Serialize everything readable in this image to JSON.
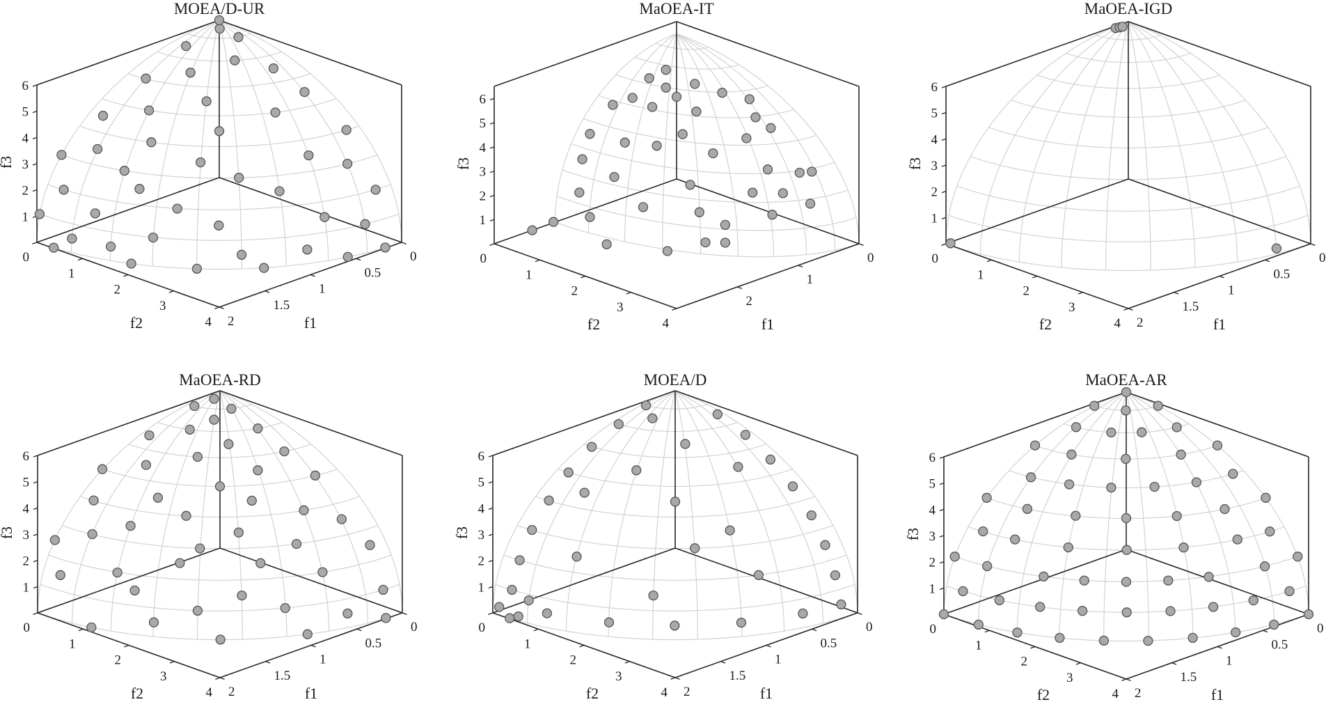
{
  "figure": {
    "marker_fill": "#a9a9a9",
    "marker_edge": "#555555",
    "grid_color": "#d2d2d2",
    "axis_color": "#262626"
  },
  "chart_data": [
    {
      "type": "scatter",
      "title": "MOEA/D-UR",
      "xlabel": "f1",
      "ylabel": "f2",
      "zlabel": "f3",
      "f1_lim": [
        0,
        2
      ],
      "f2_lim": [
        0,
        4
      ],
      "f3_lim": [
        0,
        6
      ],
      "f1_ticks": [
        "0",
        "0.5",
        "1",
        "1.5",
        "2"
      ],
      "f2_ticks": [
        "0",
        "1",
        "2",
        "3",
        "4"
      ],
      "f3_ticks": [
        "1",
        "2",
        "3",
        "4",
        "5",
        "6"
      ],
      "surface_axes": [
        2,
        4,
        6
      ],
      "grid": true,
      "points": [
        [
          1.99,
          0.35,
          0
        ],
        [
          1.81,
          1.69,
          0
        ],
        [
          1.53,
          2.57,
          0
        ],
        [
          1.15,
          3.28,
          0
        ],
        [
          0.52,
          3.86,
          0
        ],
        [
          0.17,
          3.98,
          0
        ],
        [
          1.96,
          0.69,
          0.52
        ],
        [
          1.87,
          1.36,
          0.52
        ],
        [
          1.28,
          3.05,
          0.52
        ],
        [
          0.84,
          3.61,
          0.52
        ],
        [
          1.97,
          0,
          1.04
        ],
        [
          1.71,
          1.97,
          1.04
        ],
        [
          0.34,
          3.88,
          1.04
        ],
        [
          1.86,
          1.0,
          1.55
        ],
        [
          1.37,
          2.73,
          1.55
        ],
        [
          0.66,
          3.63,
          1.55
        ],
        [
          1.87,
          0.33,
          2.05
        ],
        [
          1.54,
          2.16,
          2.05
        ],
        [
          0.16,
          3.75,
          2.05
        ],
        [
          1.64,
          1.53,
          2.54
        ],
        [
          0.91,
          3.14,
          2.54
        ],
        [
          1.73,
          0,
          3.0
        ],
        [
          1.63,
          1.18,
          3.0
        ],
        [
          1.11,
          2.65,
          3.0
        ],
        [
          0.3,
          3.41,
          3.0
        ],
        [
          1.62,
          0.57,
          3.44
        ],
        [
          1.26,
          2.11,
          3.44
        ],
        [
          0.56,
          3.08,
          3.44
        ],
        [
          1.39,
          1.29,
          3.86
        ],
        [
          0.13,
          3.05,
          3.86
        ],
        [
          1.4,
          0.25,
          4.24
        ],
        [
          1.0,
          2.0,
          4.24
        ],
        [
          1.21,
          0.88,
          4.6
        ],
        [
          0.55,
          2.33,
          4.6
        ],
        [
          0.88,
          1.48,
          4.91
        ],
        [
          0.2,
          2.27,
          4.91
        ],
        [
          0.98,
          0.35,
          5.2
        ],
        [
          0.74,
          0.85,
          5.44
        ],
        [
          0.22,
          1.63,
          5.44
        ],
        [
          0.39,
          1.12,
          5.64
        ],
        [
          0.5,
          0.27,
          5.8
        ],
        [
          0.12,
          0.66,
          5.91
        ],
        [
          0.12,
          0.25,
          5.98
        ],
        [
          0,
          0,
          6
        ]
      ]
    },
    {
      "type": "scatter",
      "title": "MaOEA-IT",
      "xlabel": "f1",
      "ylabel": "f2",
      "zlabel": "f3",
      "f1_lim": [
        0,
        3
      ],
      "f2_lim": [
        0,
        4
      ],
      "f3_lim": [
        0,
        6.5
      ],
      "f1_ticks": [
        "0",
        "1",
        "2"
      ],
      "f2_ticks": [
        "0",
        "1",
        "2",
        "3",
        "4"
      ],
      "f3_ticks": [
        "1",
        "2",
        "3",
        "4",
        "5",
        "6"
      ],
      "surface_axes": [
        2,
        4,
        6
      ],
      "grid": true,
      "points": [
        [
          1.2,
          1.0,
          5.9
        ],
        [
          0.9,
          1.6,
          5.8
        ],
        [
          1.0,
          1.1,
          5.4
        ],
        [
          1.4,
          0.9,
          5.2
        ],
        [
          0.6,
          1.8,
          5.3
        ],
        [
          1.5,
          0.6,
          4.8
        ],
        [
          0.8,
          1.5,
          4.5
        ],
        [
          0.5,
          2.4,
          4.6
        ],
        [
          0.4,
          2.6,
          4.2
        ],
        [
          1.1,
          1.6,
          3.9
        ],
        [
          1.6,
          1.0,
          3.6
        ],
        [
          1.3,
          1.3,
          3.4
        ],
        [
          0.9,
          2.0,
          3.2
        ],
        [
          0.5,
          2.2,
          3.6
        ],
        [
          0.6,
          2.8,
          2.8
        ],
        [
          0.3,
          3.1,
          2.6
        ],
        [
          1.8,
          0.5,
          3.8
        ],
        [
          2.0,
          0.6,
          3.0
        ],
        [
          1.7,
          0.9,
          2.2
        ],
        [
          1.2,
          1.9,
          2.1
        ],
        [
          0.7,
          2.6,
          1.8
        ],
        [
          0.8,
          3.4,
          2.4
        ],
        [
          0.4,
          3.5,
          3.0
        ],
        [
          1.9,
          0.4,
          1.4
        ],
        [
          2.1,
          0.9,
          0.9
        ],
        [
          1.6,
          1.4,
          1.2
        ],
        [
          1.2,
          2.1,
          1.1
        ],
        [
          1.0,
          2.4,
          0.6
        ],
        [
          0.6,
          2.9,
          1.0
        ],
        [
          1.4,
          2.5,
          0.3
        ],
        [
          2.2,
          1.4,
          0.2
        ],
        [
          1.8,
          2.2,
          0.1
        ],
        [
          0.2,
          3.2,
          1.3
        ],
        [
          0.9,
          1.2,
          5.0
        ],
        [
          1.0,
          0.8,
          4.4
        ],
        [
          0.3,
          2.0,
          4.9
        ],
        [
          0.7,
          0.7,
          5.6
        ],
        [
          1.3,
          2.8,
          0.4
        ],
        [
          2.4,
          0.5,
          0.7
        ],
        [
          2.6,
          0.3,
          0.4
        ]
      ]
    },
    {
      "type": "scatter",
      "title": "MaOEA-IGD",
      "xlabel": "f1",
      "ylabel": "f2",
      "zlabel": "f3",
      "f1_lim": [
        0,
        2
      ],
      "f2_lim": [
        0,
        4
      ],
      "f3_lim": [
        0,
        6
      ],
      "f1_ticks": [
        "0",
        "0.5",
        "1",
        "1.5",
        "2"
      ],
      "f2_ticks": [
        "0",
        "1",
        "2",
        "3",
        "4"
      ],
      "f3_ticks": [
        "1",
        "2",
        "3",
        "4",
        "5",
        "6"
      ],
      "surface_axes": [
        2,
        4,
        6
      ],
      "grid": true,
      "points": [
        [
          0.15,
          0.02,
          5.95
        ],
        [
          0.12,
          0.05,
          5.96
        ],
        [
          0.1,
          0.07,
          5.97
        ],
        [
          1.98,
          0.06,
          0.03
        ],
        [
          0.3,
          3.85,
          0.1
        ]
      ]
    },
    {
      "type": "scatter",
      "title": "MaOEA-RD",
      "xlabel": "f1",
      "ylabel": "f2",
      "zlabel": "f3",
      "f1_lim": [
        0,
        2
      ],
      "f2_lim": [
        0,
        4
      ],
      "f3_lim": [
        0,
        6
      ],
      "f1_ticks": [
        "0",
        "0.5",
        "1",
        "1.5",
        "2"
      ],
      "f2_ticks": [
        "0",
        "1",
        "2",
        "3",
        "4"
      ],
      "f3_ticks": [
        "1",
        "2",
        "3",
        "4",
        "5",
        "6"
      ],
      "surface_axes": [
        2,
        4,
        6
      ],
      "grid": true,
      "points": [
        [
          1.93,
          1.04,
          0
        ],
        [
          1.41,
          2.83,
          0
        ],
        [
          0.85,
          3.62,
          0
        ],
        [
          0.17,
          3.98,
          0
        ],
        [
          1.72,
          1.99,
          0.52
        ],
        [
          0.52,
          3.84,
          0.52
        ],
        [
          1.51,
          2.53,
          1.04
        ],
        [
          0.99,
          3.41,
          1.04
        ],
        [
          0.17,
          3.92,
          1.04
        ],
        [
          1.92,
          0.34,
          1.55
        ],
        [
          1.75,
          1.63,
          1.55
        ],
        [
          1.24,
          2.96,
          1.55
        ],
        [
          0.64,
          3.53,
          2.05
        ],
        [
          1.77,
          1.29,
          2.05
        ],
        [
          1.81,
          0,
          2.54
        ],
        [
          1.48,
          2.08,
          2.54
        ],
        [
          1.04,
          2.97,
          2.54
        ],
        [
          0.16,
          3.61,
          2.54
        ],
        [
          1.7,
          0.6,
          3.0
        ],
        [
          1.33,
          2.22,
          3.0
        ],
        [
          0.73,
          3.14,
          3.0
        ],
        [
          1.54,
          1.12,
          3.44
        ],
        [
          1.05,
          2.51,
          3.44
        ],
        [
          0.28,
          3.23,
          3.44
        ],
        [
          1.52,
          0.27,
          3.86
        ],
        [
          1.25,
          1.76,
          3.86
        ],
        [
          0.52,
          2.88,
          3.86
        ],
        [
          1.28,
          1.2,
          4.24
        ],
        [
          0.81,
          2.32,
          4.24
        ],
        [
          1.29,
          0,
          4.6
        ],
        [
          0.91,
          1.82,
          4.6
        ],
        [
          0.22,
          2.53,
          4.6
        ],
        [
          1.11,
          0.6,
          4.91
        ],
        [
          0.58,
          1.99,
          4.91
        ],
        [
          0.82,
          1.15,
          5.2
        ],
        [
          0.26,
          1.93,
          5.2
        ],
        [
          0.85,
          0.15,
          5.44
        ],
        [
          0.55,
          1.29,
          5.44
        ],
        [
          0.62,
          0.58,
          5.64
        ],
        [
          0.23,
          1.29,
          5.64
        ],
        [
          0.4,
          0.67,
          5.8
        ],
        [
          0.34,
          0.12,
          5.91
        ],
        [
          0.18,
          0.61,
          5.91
        ],
        [
          0.15,
          0.17,
          5.98
        ]
      ]
    },
    {
      "type": "scatter",
      "title": "MOEA/D",
      "xlabel": "f1",
      "ylabel": "f2",
      "zlabel": "f3",
      "f1_lim": [
        0,
        2
      ],
      "f2_lim": [
        0,
        4
      ],
      "f3_lim": [
        0,
        6
      ],
      "f1_ticks": [
        "0",
        "0.5",
        "1",
        "1.5",
        "2"
      ],
      "f2_ticks": [
        "0",
        "1",
        "2",
        "3",
        "4"
      ],
      "f3_ticks": [
        "1",
        "2",
        "3",
        "4",
        "5",
        "6"
      ],
      "surface_axes": [
        2,
        4,
        6
      ],
      "grid": true,
      "points": [
        [
          1.99,
          0.35,
          0
        ],
        [
          1.96,
          0.34,
          1.04
        ],
        [
          1.87,
          0.33,
          2.05
        ],
        [
          1.72,
          0.3,
          3.0
        ],
        [
          1.52,
          0.27,
          3.86
        ],
        [
          1.28,
          0.22,
          4.6
        ],
        [
          1.0,
          0.17,
          5.2
        ],
        [
          0.68,
          0.12,
          5.64
        ],
        [
          0.35,
          0.06,
          5.91
        ],
        [
          0.17,
          3.98,
          0.52
        ],
        [
          0.17,
          3.85,
          1.55
        ],
        [
          0.16,
          3.61,
          2.54
        ],
        [
          0.14,
          3.27,
          3.44
        ],
        [
          0.12,
          2.82,
          4.24
        ],
        [
          0.1,
          2.29,
          4.91
        ],
        [
          0.07,
          1.68,
          5.44
        ],
        [
          0.05,
          1.03,
          5.8
        ],
        [
          1.92,
          1.03,
          0.52
        ],
        [
          1.72,
          1.99,
          0.52
        ],
        [
          1.41,
          2.81,
          0.52
        ],
        [
          1.0,
          3.45,
          0.52
        ],
        [
          0.52,
          3.84,
          0.52
        ],
        [
          1.7,
          1.24,
          2.54
        ],
        [
          1.48,
          2.48,
          1.55
        ],
        [
          0.82,
          2.84,
          3.44
        ],
        [
          1.0,
          1.15,
          4.91
        ],
        [
          0.39,
          2.16,
          4.91
        ],
        [
          1.36,
          0.73,
          4.24
        ],
        [
          0.54,
          1.3,
          5.44
        ],
        [
          0.47,
          0.44,
          5.8
        ],
        [
          2.0,
          0.14,
          0.31
        ],
        [
          1.95,
          0.69,
          0.84
        ],
        [
          2.0,
          0.56,
          0.21
        ],
        [
          1.0,
          2.0,
          4.24
        ],
        [
          0.79,
          3.41,
          2.05
        ],
        [
          1.11,
          2.65,
          3.0
        ]
      ]
    },
    {
      "type": "scatter",
      "title": "MaOEA-AR",
      "xlabel": "f1",
      "ylabel": "f2",
      "zlabel": "f3",
      "f1_lim": [
        0,
        2
      ],
      "f2_lim": [
        0,
        4
      ],
      "f3_lim": [
        0,
        6
      ],
      "f1_ticks": [
        "0",
        "0.5",
        "1",
        "1.5",
        "2"
      ],
      "f2_ticks": [
        "0",
        "1",
        "2",
        "3",
        "4"
      ],
      "f3_ticks": [
        "1",
        "2",
        "3",
        "4",
        "5",
        "6"
      ],
      "surface_axes": [
        2,
        4,
        6
      ],
      "grid": true,
      "points": [
        [
          2.0,
          0,
          0
        ],
        [
          1.97,
          0.7,
          0
        ],
        [
          1.88,
          1.37,
          0
        ],
        [
          1.73,
          2.0,
          0
        ],
        [
          1.53,
          2.57,
          0
        ],
        [
          1.29,
          3.06,
          0
        ],
        [
          1.0,
          3.46,
          0
        ],
        [
          0.68,
          3.76,
          0
        ],
        [
          0.35,
          3.94,
          0
        ],
        [
          0,
          4,
          0
        ],
        [
          1.96,
          0.34,
          1.04
        ],
        [
          1.9,
          1.02,
          1.04
        ],
        [
          1.78,
          1.67,
          1.04
        ],
        [
          1.61,
          2.26,
          1.04
        ],
        [
          1.39,
          2.79,
          1.04
        ],
        [
          1.13,
          3.23,
          1.04
        ],
        [
          0.83,
          3.57,
          1.04
        ],
        [
          0.51,
          3.81,
          1.04
        ],
        [
          0.17,
          3.92,
          1.04
        ],
        [
          1.88,
          0,
          2.05
        ],
        [
          1.85,
          0.65,
          2.05
        ],
        [
          1.7,
          1.59,
          2.05
        ],
        [
          1.54,
          2.16,
          2.05
        ],
        [
          1.33,
          2.66,
          2.05
        ],
        [
          1.08,
          3.08,
          2.05
        ],
        [
          0.8,
          3.41,
          2.05
        ],
        [
          0.33,
          3.7,
          2.05
        ],
        [
          0,
          3.76,
          2.05
        ],
        [
          1.72,
          0.3,
          3.0
        ],
        [
          1.67,
          0.9,
          3.0
        ],
        [
          1.5,
          1.73,
          3.0
        ],
        [
          1.22,
          2.45,
          3.0
        ],
        [
          0.87,
          3.0,
          3.0
        ],
        [
          0.45,
          3.34,
          3.0
        ],
        [
          0.15,
          3.45,
          3.0
        ],
        [
          1.53,
          0,
          3.86
        ],
        [
          1.48,
          0.79,
          3.86
        ],
        [
          1.32,
          1.53,
          3.86
        ],
        [
          1.08,
          2.16,
          3.86
        ],
        [
          0.77,
          2.65,
          3.86
        ],
        [
          0.4,
          2.96,
          3.86
        ],
        [
          0,
          3.06,
          3.86
        ],
        [
          1.27,
          0.45,
          4.6
        ],
        [
          1.17,
          1.09,
          4.6
        ],
        [
          0.99,
          1.65,
          4.6
        ],
        [
          0.74,
          2.1,
          4.6
        ],
        [
          0.44,
          2.42,
          4.6
        ],
        [
          0.11,
          2.56,
          4.6
        ],
        [
          1.0,
          0,
          5.2
        ],
        [
          0.94,
          0.68,
          5.2
        ],
        [
          0.71,
          1.41,
          5.2
        ],
        [
          0.34,
          1.88,
          5.2
        ],
        [
          0,
          2.0,
          5.2
        ],
        [
          0.67,
          0.24,
          5.64
        ],
        [
          0.56,
          0.79,
          5.64
        ],
        [
          0.39,
          1.12,
          5.64
        ],
        [
          0.12,
          1.35,
          5.64
        ],
        [
          0.35,
          0,
          5.91
        ],
        [
          0.25,
          0.49,
          5.91
        ],
        [
          0,
          0.7,
          5.91
        ],
        [
          0,
          0,
          6
        ]
      ]
    }
  ]
}
